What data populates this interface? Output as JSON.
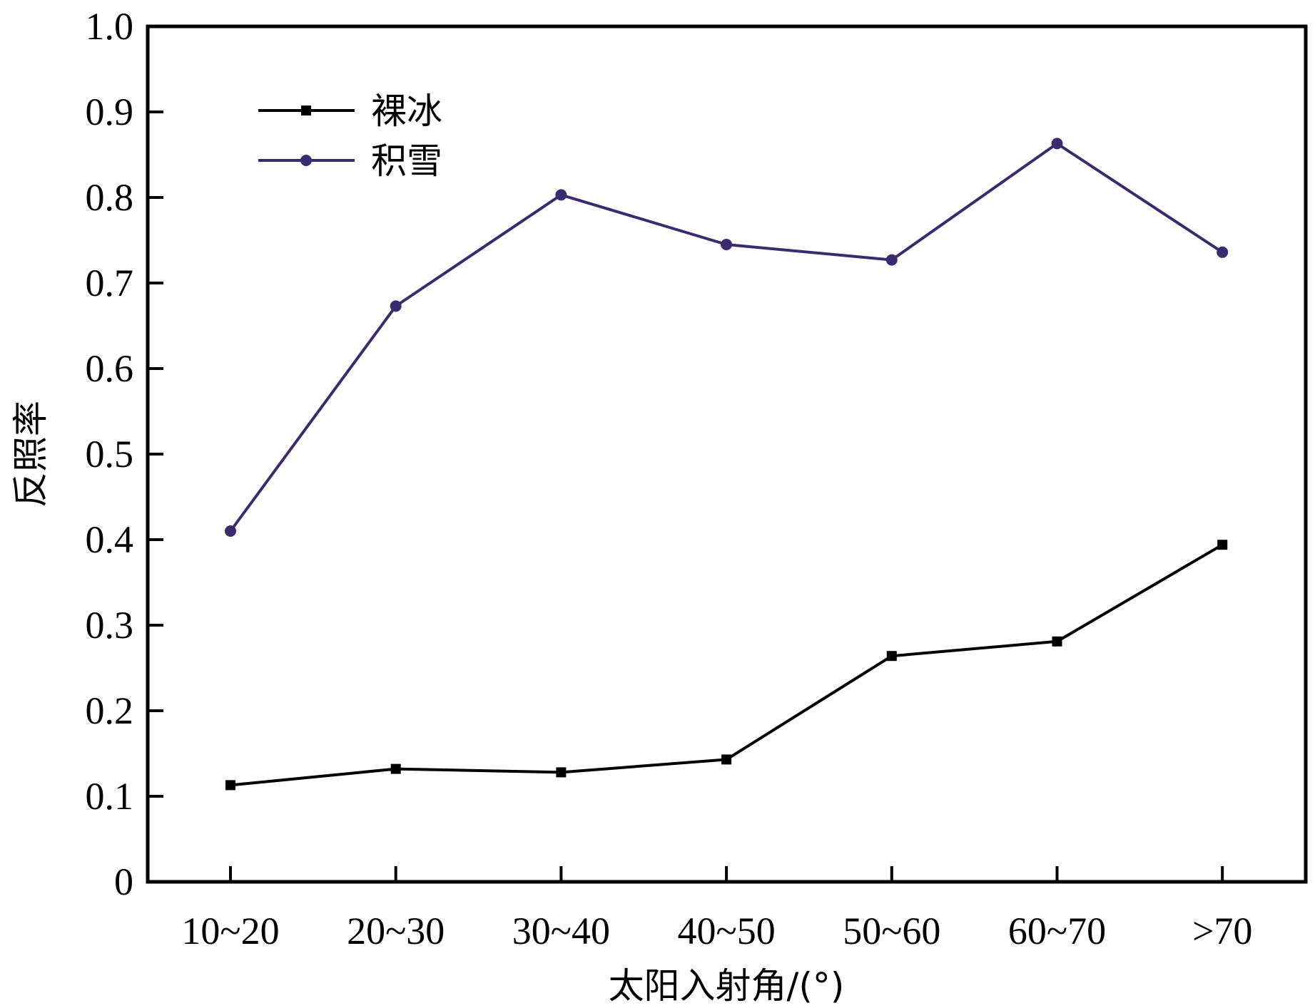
{
  "chart_data": {
    "type": "line",
    "title": "",
    "xlabel": "太阳入射角/(°)",
    "ylabel": "反照率",
    "categories": [
      "10~20",
      "20~30",
      "30~40",
      "40~50",
      "50~60",
      "60~70",
      ">70"
    ],
    "ylim": [
      0,
      1.0
    ],
    "yticks": [
      "0",
      "0.1",
      "0.2",
      "0.3",
      "0.4",
      "0.5",
      "0.6",
      "0.7",
      "0.8",
      "0.9",
      "1.0"
    ],
    "grid": false,
    "legend_position": "top-left",
    "series": [
      {
        "name": "裸冰",
        "marker": "square",
        "color": "#000000",
        "values": [
          0.113,
          0.132,
          0.128,
          0.143,
          0.264,
          0.281,
          0.394
        ]
      },
      {
        "name": "积雪",
        "marker": "circle",
        "color": "#3a2a6e",
        "values": [
          0.41,
          0.673,
          0.803,
          0.745,
          0.727,
          0.863,
          0.736
        ]
      }
    ]
  }
}
